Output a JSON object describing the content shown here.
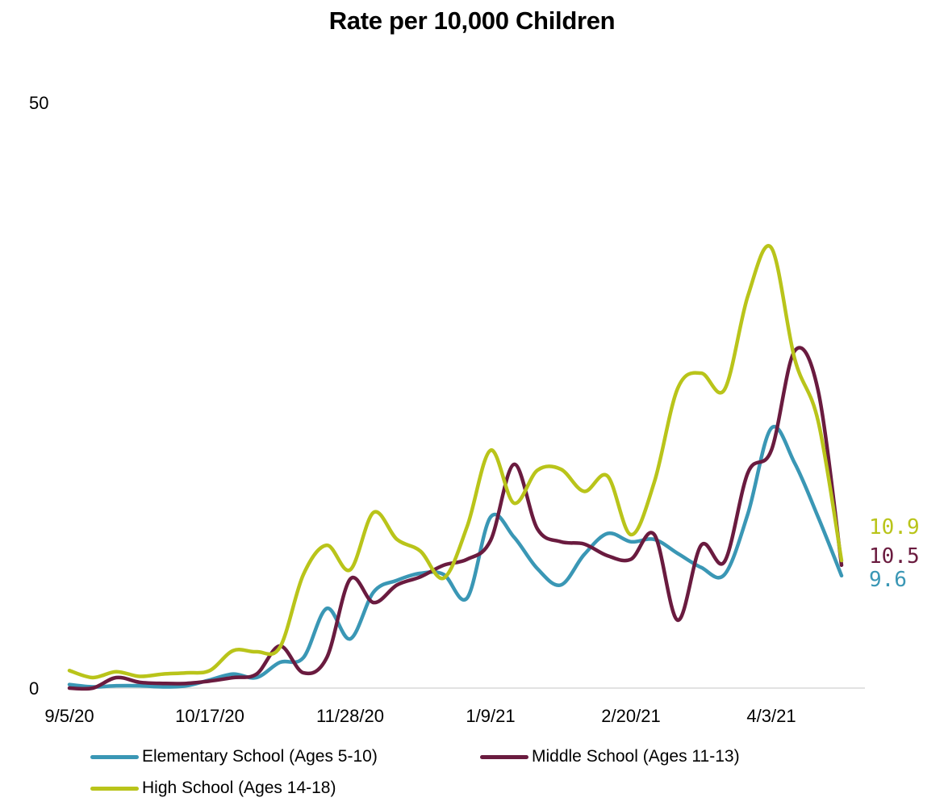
{
  "chart_data": {
    "type": "line",
    "title": "Rate per 10,000 Children",
    "xlabel": "",
    "ylabel": "",
    "ylim": [
      0,
      50
    ],
    "y_ticks": [
      "0",
      "50"
    ],
    "x_ticks": [
      "9/5/20",
      "10/17/20",
      "11/28/20",
      "1/9/21",
      "2/20/21",
      "4/3/21"
    ],
    "x": [
      "9/5/20",
      "9/12/20",
      "9/19/20",
      "9/26/20",
      "10/3/20",
      "10/10/20",
      "10/17/20",
      "10/24/20",
      "10/31/20",
      "11/7/20",
      "11/14/20",
      "11/21/20",
      "11/28/20",
      "12/5/20",
      "12/12/20",
      "12/19/20",
      "12/26/20",
      "1/2/21",
      "1/9/21",
      "1/16/21",
      "1/23/21",
      "1/30/21",
      "2/6/21",
      "2/13/21",
      "2/20/21",
      "2/27/21",
      "3/6/21",
      "3/13/21",
      "3/20/21",
      "3/27/21",
      "4/3/21",
      "4/10/21",
      "4/17/21",
      "4/24/21"
    ],
    "series": [
      {
        "name": "Elementary School (Ages 5-10)",
        "color": "#3A97B5",
        "values": [
          0.3,
          0.1,
          0.2,
          0.2,
          0.1,
          0.2,
          0.7,
          1.2,
          0.9,
          2.2,
          2.6,
          6.8,
          4.2,
          8.2,
          9.2,
          9.8,
          9.7,
          7.7,
          14.6,
          12.9,
          10.2,
          8.8,
          11.4,
          13.2,
          12.5,
          12.7,
          11.5,
          10.3,
          9.7,
          14.9,
          22.2,
          19.2,
          14.6,
          9.6
        ]
      },
      {
        "name": "Middle School (Ages 11-13)",
        "color": "#6A1B3F",
        "values": [
          0,
          0,
          0.9,
          0.5,
          0.4,
          0.4,
          0.6,
          0.9,
          1.2,
          3.6,
          1.3,
          2.6,
          9.3,
          7.3,
          8.8,
          9.5,
          10.5,
          11.0,
          12.6,
          19.1,
          13.6,
          12.5,
          12.3,
          11.3,
          11.0,
          13.1,
          5.8,
          12.2,
          10.8,
          18.4,
          20.3,
          28.8,
          25.4,
          10.5
        ]
      },
      {
        "name": "High School (Ages 14-18)",
        "color": "#B9C41A",
        "values": [
          1.5,
          0.9,
          1.4,
          1.0,
          1.2,
          1.3,
          1.5,
          3.2,
          3.1,
          3.5,
          9.7,
          12.2,
          10.1,
          15.0,
          12.7,
          11.7,
          9.4,
          13.8,
          20.3,
          15.8,
          18.6,
          18.7,
          16.8,
          18.1,
          13.1,
          17.6,
          25.6,
          26.9,
          25.5,
          33.5,
          37.6,
          28.1,
          22.8,
          10.9
        ]
      }
    ],
    "end_labels": [
      "10.9",
      "10.5",
      "9.6"
    ],
    "legend_position": "bottom"
  }
}
